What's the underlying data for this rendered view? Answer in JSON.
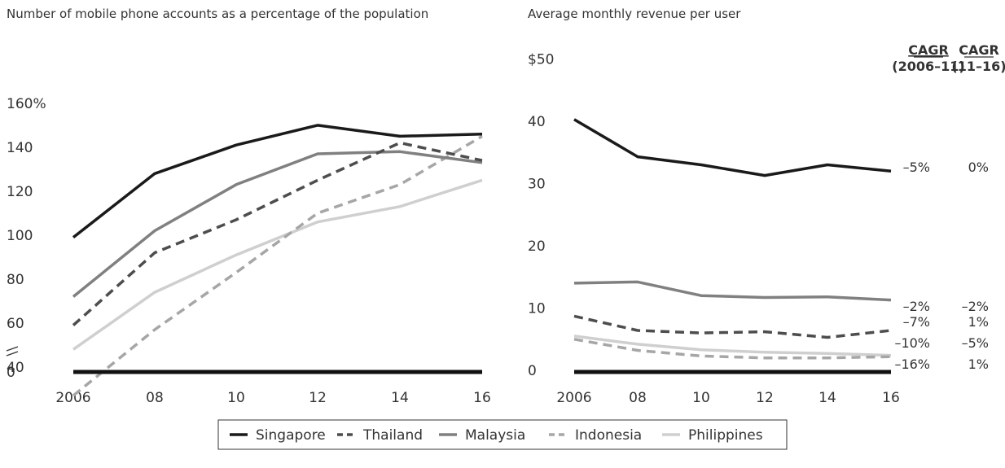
{
  "chart_data": [
    {
      "type": "line",
      "title": "Number of mobile phone accounts as a percentage of the population",
      "x": [
        "2006",
        "08",
        "10",
        "12",
        "14",
        "16"
      ],
      "ylim": [
        0,
        160
      ],
      "y_tick_labels": [
        "0",
        "40",
        "60",
        "80",
        "100",
        "120",
        "140",
        "160%"
      ],
      "axis_break": true,
      "series": [
        {
          "name": "Singapore",
          "values": [
            99,
            128,
            141,
            150,
            145,
            146
          ],
          "color": "#1a1a1a",
          "dash": "solid"
        },
        {
          "name": "Thailand",
          "values": [
            59,
            92,
            107,
            125,
            142,
            134
          ],
          "color": "#4d4d4d",
          "dash": "dashed"
        },
        {
          "name": "Malaysia",
          "values": [
            72,
            102,
            123,
            137,
            138,
            133
          ],
          "color": "#808080",
          "dash": "solid"
        },
        {
          "name": "Indonesia",
          "values": [
            27,
            57,
            83,
            110,
            123,
            145
          ],
          "color": "#a6a6a6",
          "dash": "dashed"
        },
        {
          "name": "Philippines",
          "values": [
            48,
            74,
            91,
            106,
            113,
            125
          ],
          "color": "#cfcfcf",
          "dash": "solid"
        }
      ]
    },
    {
      "type": "line",
      "title": "Average monthly revenue per user",
      "x": [
        "2006",
        "08",
        "10",
        "12",
        "14",
        "16"
      ],
      "ylim": [
        0,
        50
      ],
      "y_tick_labels": [
        "0",
        "10",
        "20",
        "30",
        "40",
        "$50"
      ],
      "series": [
        {
          "name": "Singapore",
          "values": [
            40.3,
            34.3,
            33.0,
            31.3,
            33.0,
            32.0
          ],
          "color": "#1a1a1a",
          "dash": "solid",
          "cagr_2006_11": "–5%",
          "cagr_11_16": "0%"
        },
        {
          "name": "Malaysia",
          "values": [
            14.0,
            14.2,
            12.0,
            11.7,
            11.8,
            11.3
          ],
          "color": "#808080",
          "dash": "solid",
          "cagr_2006_11": "–2%",
          "cagr_11_16": "–2%"
        },
        {
          "name": "Thailand",
          "values": [
            8.7,
            6.4,
            6.0,
            6.2,
            5.3,
            6.4
          ],
          "color": "#4d4d4d",
          "dash": "dashed",
          "cagr_2006_11": "–7%",
          "cagr_11_16": "1%"
        },
        {
          "name": "Philippines",
          "values": [
            5.5,
            4.2,
            3.3,
            2.9,
            2.7,
            2.4
          ],
          "color": "#cfcfcf",
          "dash": "solid",
          "cagr_2006_11": "–10%",
          "cagr_11_16": "–5%"
        },
        {
          "name": "Indonesia",
          "values": [
            5.0,
            3.2,
            2.3,
            2.0,
            2.0,
            2.2
          ],
          "color": "#a6a6a6",
          "dash": "dashed",
          "cagr_2006_11": "–16%",
          "cagr_11_16": "1%"
        }
      ],
      "cagr_headers": [
        {
          "line1": "CAGR",
          "line2": "(2006–11)"
        },
        {
          "line1": "CAGR",
          "line2": "(11–16)"
        }
      ]
    }
  ],
  "legend": {
    "placement": "bottom-center",
    "items": [
      {
        "label": "Singapore",
        "color": "#1a1a1a",
        "dash": "solid"
      },
      {
        "label": "Thailand",
        "color": "#4d4d4d",
        "dash": "dashed"
      },
      {
        "label": "Malaysia",
        "color": "#808080",
        "dash": "solid"
      },
      {
        "label": "Indonesia",
        "color": "#a6a6a6",
        "dash": "dashed"
      },
      {
        "label": "Philippines",
        "color": "#cfcfcf",
        "dash": "solid"
      }
    ]
  }
}
